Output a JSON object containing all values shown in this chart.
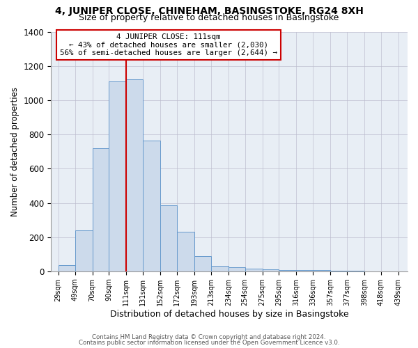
{
  "title": "4, JUNIPER CLOSE, CHINEHAM, BASINGSTOKE, RG24 8XH",
  "subtitle": "Size of property relative to detached houses in Basingstoke",
  "xlabel": "Distribution of detached houses by size in Basingstoke",
  "ylabel": "Number of detached properties",
  "footer_lines": [
    "Contains HM Land Registry data © Crown copyright and database right 2024.",
    "Contains public sector information licensed under the Open Government Licence v3.0."
  ],
  "annotation_title": "4 JUNIPER CLOSE: 111sqm",
  "annotation_line1": "← 43% of detached houses are smaller (2,030)",
  "annotation_line2": "56% of semi-detached houses are larger (2,644) →",
  "bar_left_edges": [
    29,
    49,
    70,
    90,
    111,
    131,
    152,
    172,
    193,
    213,
    234,
    254,
    275,
    295,
    316,
    336,
    357,
    377,
    398,
    418
  ],
  "bar_widths": [
    20,
    21,
    20,
    21,
    20,
    21,
    20,
    21,
    20,
    21,
    20,
    21,
    20,
    21,
    21,
    21,
    20,
    21,
    20,
    21
  ],
  "bar_heights": [
    35,
    240,
    720,
    1110,
    1125,
    765,
    385,
    230,
    90,
    30,
    25,
    15,
    10,
    8,
    5,
    5,
    3,
    1,
    0,
    0
  ],
  "bar_color": "#ccdaeb",
  "bar_edge_color": "#6699cc",
  "marker_x": 111,
  "marker_color": "#cc0000",
  "ylim": [
    0,
    1400
  ],
  "xlim": [
    20,
    450
  ],
  "tick_labels": [
    "29sqm",
    "49sqm",
    "70sqm",
    "90sqm",
    "111sqm",
    "131sqm",
    "152sqm",
    "172sqm",
    "193sqm",
    "213sqm",
    "234sqm",
    "254sqm",
    "275sqm",
    "295sqm",
    "316sqm",
    "336sqm",
    "357sqm",
    "377sqm",
    "398sqm",
    "418sqm",
    "439sqm"
  ],
  "tick_positions": [
    29,
    49,
    70,
    90,
    111,
    131,
    152,
    172,
    193,
    213,
    234,
    254,
    275,
    295,
    316,
    336,
    357,
    377,
    398,
    418,
    439
  ],
  "background_color": "#ffffff",
  "plot_bg_color": "#e8eef5",
  "annotation_box_color": "#ffffff",
  "annotation_box_edge": "#cc0000",
  "grid_color": "#bbbbcc",
  "yticks": [
    0,
    200,
    400,
    600,
    800,
    1000,
    1200,
    1400
  ],
  "title_fontsize": 10,
  "subtitle_fontsize": 9
}
